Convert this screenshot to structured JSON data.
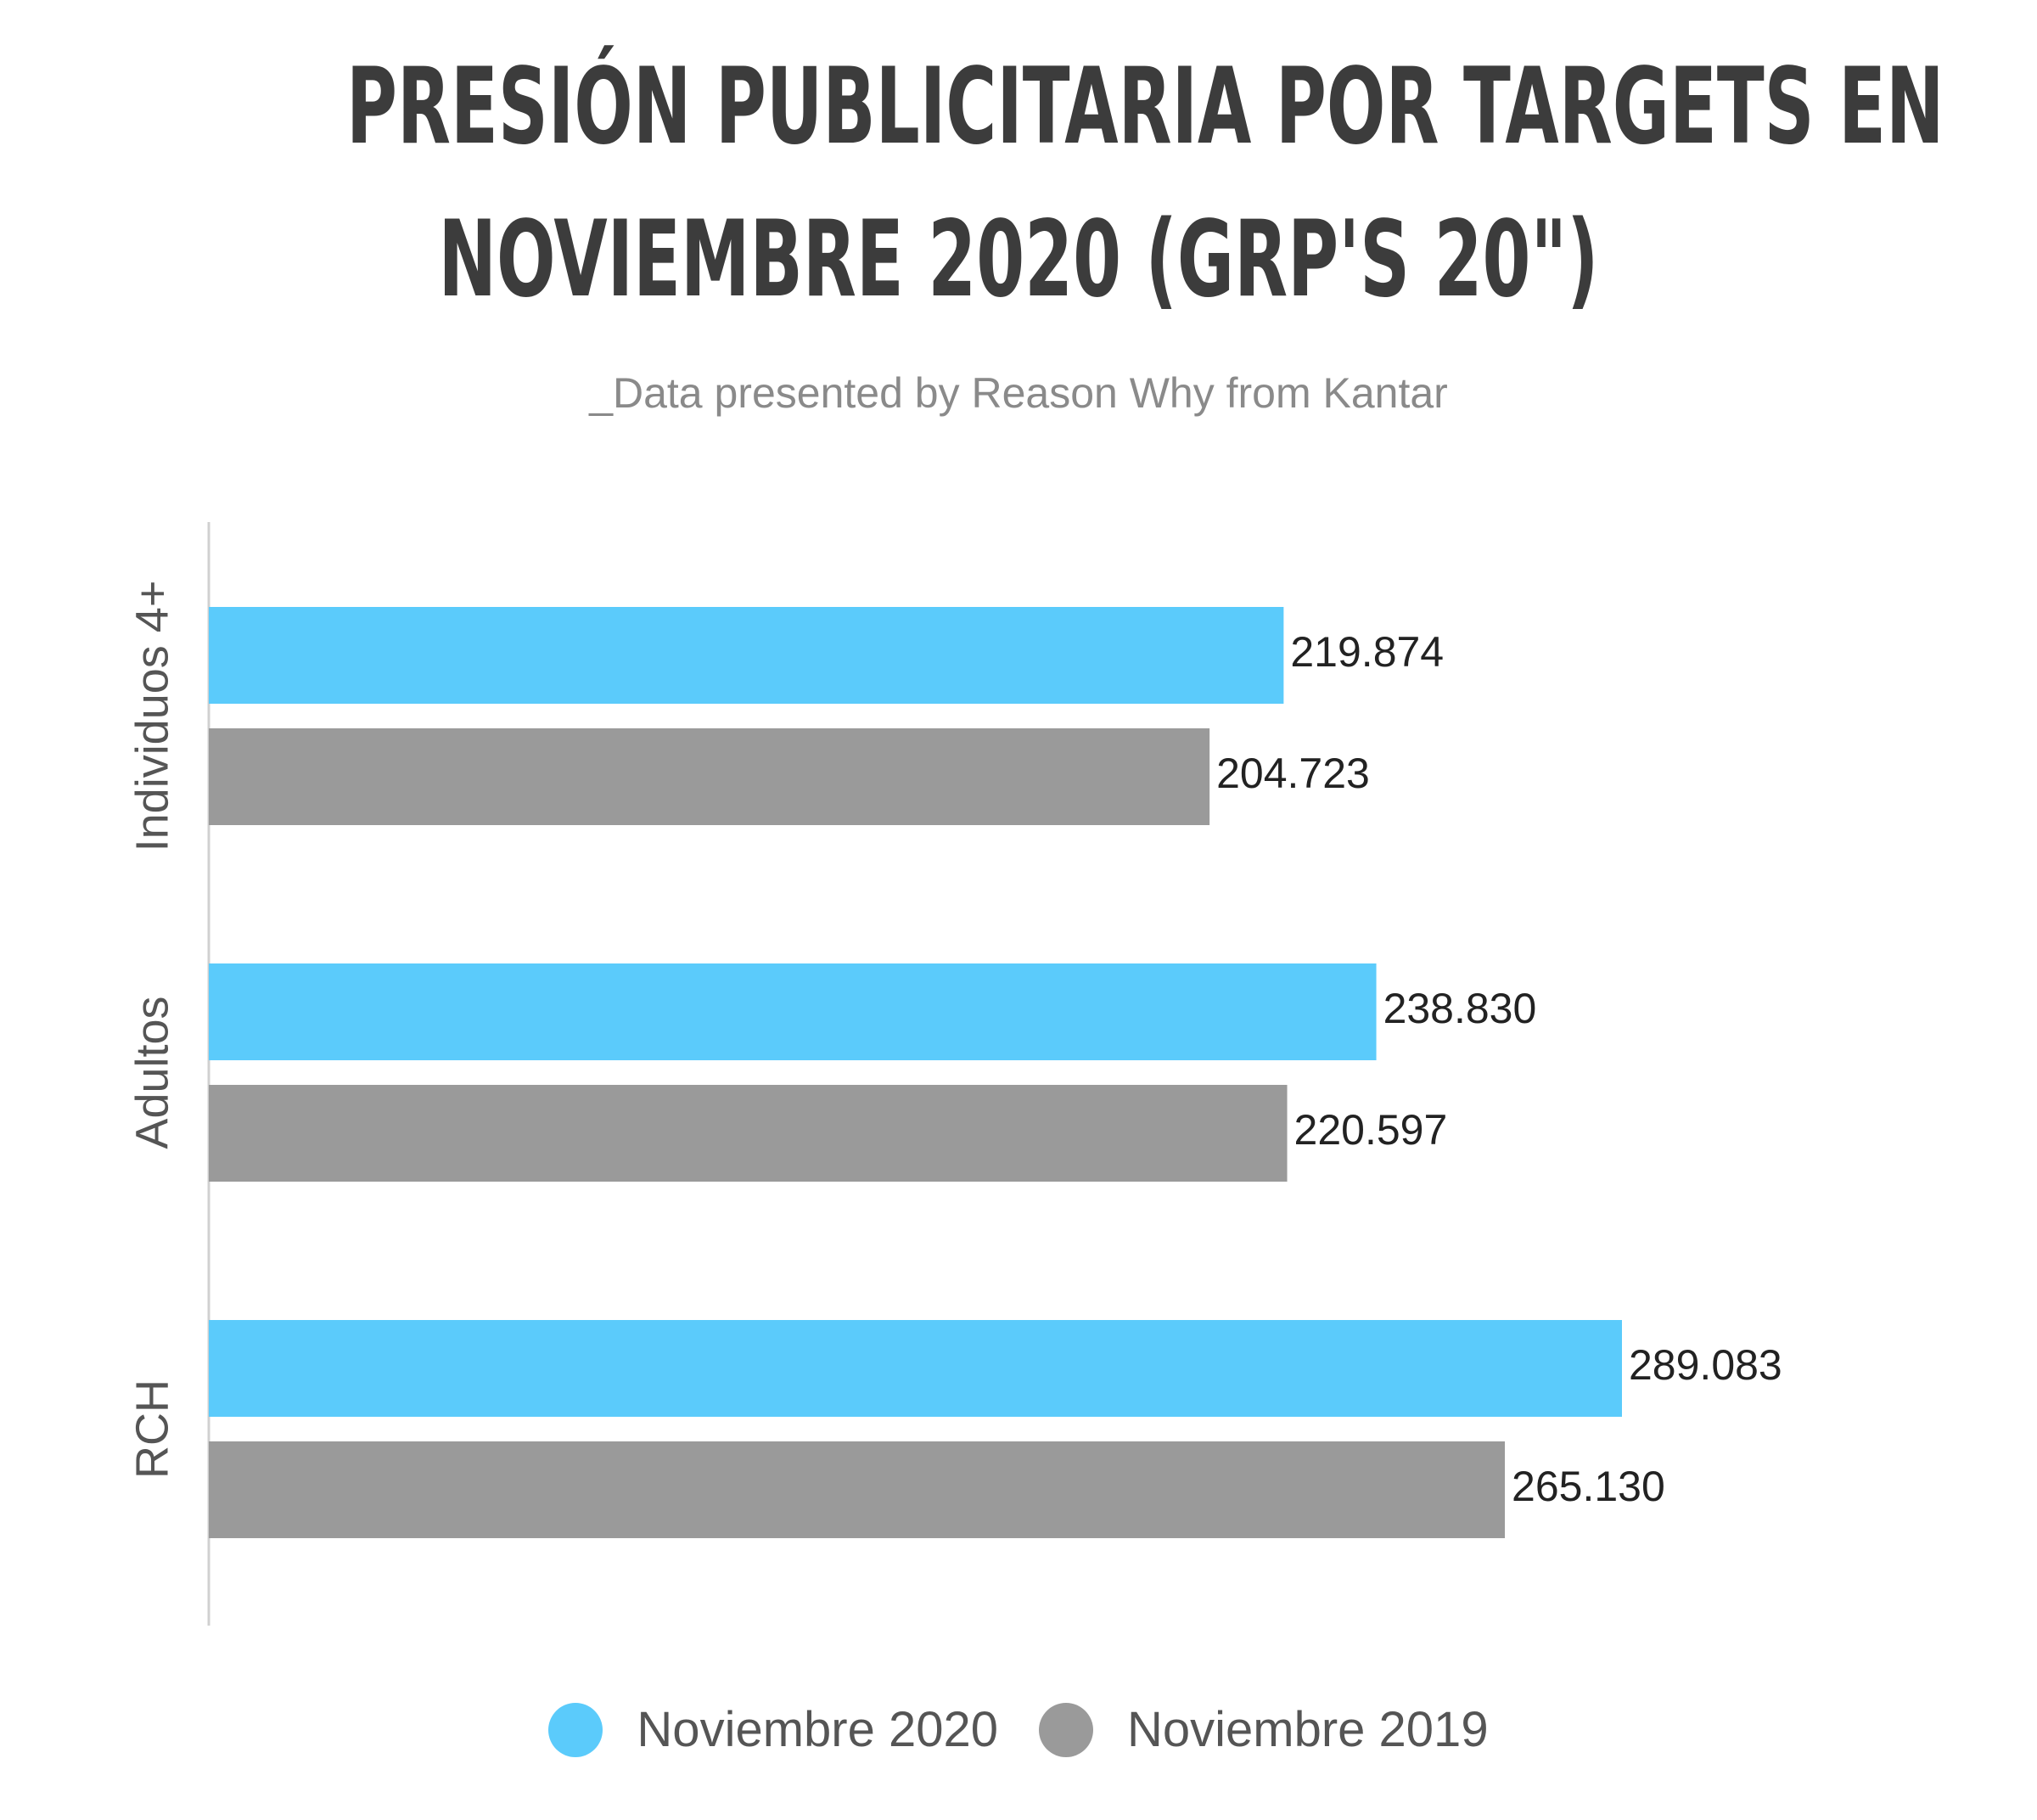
{
  "title_line1": "PRESIÓN PUBLICITARIA POR TARGETS EN",
  "title_line2": "NOVIEMBRE 2020 (GRP'S 20\")",
  "subtitle": "_Data presented by Reason Why from Kantar",
  "colors": {
    "series_2020": "#5bcbfb",
    "series_2019": "#9a9a9a",
    "axis": "#d0d0d0",
    "text": "#222222",
    "category_text": "#555555"
  },
  "chart_data": {
    "type": "bar",
    "orientation": "horizontal",
    "title": "PRESIÓN PUBLICITARIA POR TARGETS EN NOVIEMBRE 2020 (GRP'S 20\")",
    "subtitle": "_Data presented by Reason Why from Kantar",
    "categories": [
      "Individuos 4+",
      "Adultos",
      "RCH"
    ],
    "series": [
      {
        "name": "Noviembre 2020",
        "values": [
          219874,
          238830,
          289083
        ],
        "labels": [
          "219.874",
          "238.830",
          "289.083"
        ]
      },
      {
        "name": "Noviembre 2019",
        "values": [
          204723,
          220597,
          265130
        ],
        "labels": [
          "204.723",
          "220.597",
          "265.130"
        ]
      }
    ],
    "xlim": [
      0,
      289083
    ],
    "grid": false,
    "legend_position": "bottom"
  }
}
